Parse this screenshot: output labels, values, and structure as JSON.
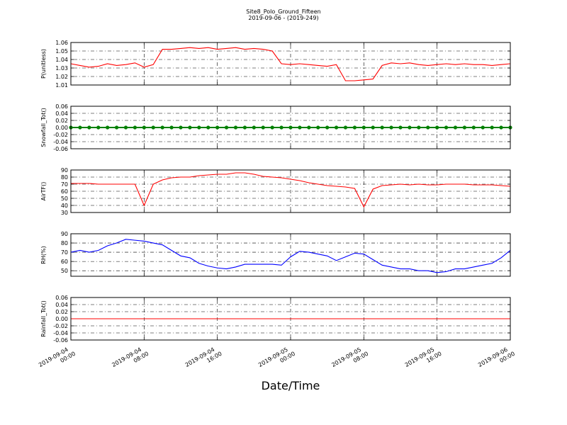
{
  "title": "Site8_Polo_Ground_Fifteen",
  "subtitle": "2019-09-06 - (2019-249)",
  "xlabel": "Date/Time",
  "x": [
    "2019-09-04 00:00",
    "2019-09-04 01:00",
    "2019-09-04 02:00",
    "2019-09-04 03:00",
    "2019-09-04 04:00",
    "2019-09-04 05:00",
    "2019-09-04 06:00",
    "2019-09-04 07:00",
    "2019-09-04 08:00",
    "2019-09-04 09:00",
    "2019-09-04 10:00",
    "2019-09-04 11:00",
    "2019-09-04 12:00",
    "2019-09-04 13:00",
    "2019-09-04 14:00",
    "2019-09-04 15:00",
    "2019-09-04 16:00",
    "2019-09-04 17:00",
    "2019-09-04 18:00",
    "2019-09-04 19:00",
    "2019-09-04 20:00",
    "2019-09-04 21:00",
    "2019-09-04 22:00",
    "2019-09-04 23:00",
    "2019-09-05 00:00",
    "2019-09-05 01:00",
    "2019-09-05 02:00",
    "2019-09-05 03:00",
    "2019-09-05 04:00",
    "2019-09-05 05:00",
    "2019-09-05 06:00",
    "2019-09-05 07:00",
    "2019-09-05 08:00",
    "2019-09-05 09:00",
    "2019-09-05 10:00",
    "2019-09-05 11:00",
    "2019-09-05 12:00",
    "2019-09-05 13:00",
    "2019-09-05 14:00",
    "2019-09-05 15:00",
    "2019-09-05 16:00",
    "2019-09-05 17:00",
    "2019-09-05 18:00",
    "2019-09-05 19:00",
    "2019-09-05 20:00",
    "2019-09-05 21:00",
    "2019-09-05 22:00",
    "2019-09-05 23:00",
    "2019-09-06 00:00"
  ],
  "xlim": [
    "2019-09-04 00:00",
    "2019-09-06 00:00"
  ],
  "xticks": [
    "2019-09-04 00:00",
    "2019-09-04 08:00",
    "2019-09-04 16:00",
    "2019-09-05 00:00",
    "2019-09-05 08:00",
    "2019-09-05 16:00",
    "2019-09-06 00:00"
  ],
  "chart_data": [
    {
      "type": "line",
      "ylabel": "P(unitless)",
      "ylim": [
        1.01,
        1.06
      ],
      "yticks": [
        1.01,
        1.02,
        1.03,
        1.04,
        1.05,
        1.06
      ],
      "grid": true,
      "series": [
        {
          "color": "#ff0000",
          "values": [
            1.035,
            1.033,
            1.031,
            1.032,
            1.035,
            1.033,
            1.034,
            1.036,
            1.031,
            1.034,
            1.052,
            1.052,
            1.053,
            1.054,
            1.053,
            1.054,
            1.052,
            1.053,
            1.054,
            1.052,
            1.053,
            1.052,
            1.05,
            1.035,
            1.034,
            1.035,
            1.034,
            1.033,
            1.032,
            1.034,
            1.015,
            1.015,
            1.016,
            1.017,
            1.033,
            1.036,
            1.035,
            1.036,
            1.034,
            1.033,
            1.034,
            1.035,
            1.034,
            1.035,
            1.034,
            1.034,
            1.033,
            1.034,
            1.035
          ]
        }
      ]
    },
    {
      "type": "line",
      "ylabel": "Snowfall_Tot()",
      "ylim": [
        -0.06,
        0.06
      ],
      "yticks": [
        -0.06,
        -0.04,
        -0.02,
        {
          "value": 0,
          "label": "0.00"
        },
        0.02,
        0.04,
        0.06
      ],
      "grid": true,
      "series": [
        {
          "color": "#008000",
          "marker": true,
          "values": [
            0,
            0,
            0,
            0,
            0,
            0,
            0,
            0,
            0,
            0,
            0,
            0,
            0,
            0,
            0,
            0,
            0,
            0,
            0,
            0,
            0,
            0,
            0,
            0,
            0,
            0,
            0,
            0,
            0,
            0,
            0,
            0,
            0,
            0,
            0,
            0,
            0,
            0,
            0,
            0,
            0,
            0,
            0,
            0,
            0,
            0,
            0,
            0,
            0
          ]
        }
      ]
    },
    {
      "type": "line",
      "ylabel": "AirTF()",
      "ylim": [
        30,
        90
      ],
      "yticks": [
        30,
        40,
        50,
        60,
        70,
        80,
        90
      ],
      "grid": true,
      "series": [
        {
          "color": "#ff0000",
          "values": [
            71,
            71,
            71,
            70,
            70,
            70,
            70,
            70,
            40,
            70,
            76,
            79,
            80,
            80,
            82,
            83,
            84,
            84,
            86,
            86,
            84,
            81,
            80,
            79,
            77,
            75,
            72,
            70,
            68,
            67,
            66,
            64,
            38,
            63,
            68,
            69,
            70,
            69,
            70,
            69,
            69,
            70,
            70,
            70,
            69,
            69,
            69,
            68,
            67
          ]
        }
      ]
    },
    {
      "type": "line",
      "ylabel": "RH(%)",
      "ylim": [
        44,
        90
      ],
      "yticks": [
        50,
        60,
        70,
        80,
        90
      ],
      "grid": true,
      "series": [
        {
          "color": "#0000ff",
          "values": [
            70,
            72,
            70,
            72,
            77,
            80,
            84,
            83,
            82,
            80,
            78,
            72,
            66,
            64,
            58,
            55,
            53,
            52,
            54,
            57,
            57,
            57,
            57,
            56,
            65,
            71,
            70,
            68,
            66,
            61,
            65,
            69,
            68,
            62,
            56,
            54,
            52,
            52,
            50,
            50,
            48,
            49,
            52,
            52,
            54,
            56,
            58,
            64,
            72
          ]
        }
      ]
    },
    {
      "type": "line",
      "ylabel": "Rainfall_Tot()",
      "ylim": [
        -0.06,
        0.06
      ],
      "yticks": [
        -0.06,
        -0.04,
        -0.02,
        {
          "value": 0,
          "label": "0.00"
        },
        0.02,
        0.04,
        0.06
      ],
      "grid": true,
      "series": [
        {
          "color": "#ff0000",
          "values": [
            0,
            0,
            0,
            0,
            0,
            0,
            0,
            0,
            0,
            0,
            0,
            0,
            0,
            0,
            0,
            0,
            0,
            0,
            0,
            0,
            0,
            0,
            0,
            0,
            0,
            0,
            0,
            0,
            0,
            0,
            0,
            0,
            0,
            0,
            0,
            0,
            0,
            0,
            0,
            0,
            0,
            0,
            0,
            0,
            0,
            0,
            0,
            0,
            0
          ]
        }
      ]
    }
  ]
}
